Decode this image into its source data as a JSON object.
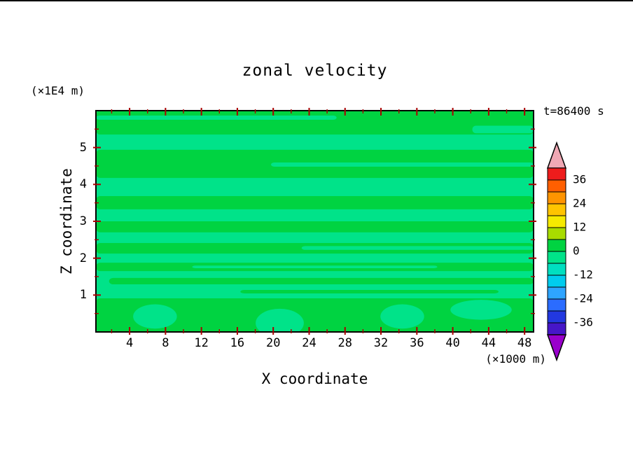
{
  "page": {
    "background": "#ffffff"
  },
  "chart_data": {
    "type": "heatmap",
    "subtype": "filled_contour",
    "title": "zonal velocity",
    "time_annotation": "t=86400 s",
    "xlabel": "X coordinate",
    "ylabel": "Z coordinate",
    "x_unit_note": "(×1000 m)",
    "y_unit_note": "(×1E4 m)",
    "xlim": [
      0.25,
      49
    ],
    "ylim": [
      0,
      6
    ],
    "x_ticks": [
      4,
      8,
      12,
      16,
      20,
      24,
      28,
      32,
      36,
      40,
      44,
      48
    ],
    "x_minor_step": 2,
    "y_ticks": [
      1,
      2,
      3,
      4,
      5
    ],
    "y_minor_step": 0.5,
    "contour_interval": 6,
    "value_range_displayed": [
      -42,
      42
    ],
    "frame_color": "#000000",
    "tick_color": "#aa0000",
    "field": {
      "background": "#00e389",
      "stripe_color": "#00d341",
      "stripes": [
        [
          0.0,
          0.108,
          0.0,
          1.0
        ],
        [
          0.177,
          0.127,
          0.0,
          1.0
        ],
        [
          0.386,
          0.06,
          0.0,
          1.0
        ],
        [
          0.5,
          0.05,
          0.0,
          1.0
        ],
        [
          0.598,
          0.048,
          0.0,
          1.0
        ],
        [
          0.687,
          0.038,
          0.0,
          1.0
        ],
        [
          0.756,
          0.029,
          0.03,
          1.0
        ],
        [
          0.81,
          0.016,
          0.33,
          0.92
        ],
        [
          0.848,
          0.152,
          0.0,
          1.0
        ]
      ],
      "gaps": [
        [
          0.022,
          0.019,
          0.0,
          0.55
        ],
        [
          0.068,
          0.034,
          0.86,
          1.0
        ],
        [
          0.234,
          0.019,
          0.4,
          1.0
        ],
        [
          0.612,
          0.017,
          0.47,
          1.0
        ],
        [
          0.7,
          0.012,
          0.22,
          0.78
        ]
      ],
      "blobs": [
        [
          0.135,
          0.93,
          0.05,
          0.055
        ],
        [
          0.42,
          0.96,
          0.055,
          0.065
        ],
        [
          0.7,
          0.93,
          0.05,
          0.055
        ],
        [
          0.88,
          0.9,
          0.07,
          0.045
        ]
      ]
    },
    "colorbar": {
      "labels": [
        "36",
        "24",
        "12",
        "0",
        "-12",
        "-24",
        "-36"
      ],
      "bands": [
        "#ee1c1c",
        "#ff5f00",
        "#ff9400",
        "#ffc400",
        "#f6ea00",
        "#a8dc00",
        "#00d341",
        "#00e389",
        "#00dfc0",
        "#00ccee",
        "#2ea4ff",
        "#2b6cff",
        "#2238e0",
        "#4616c8"
      ],
      "over_arrow_color": "#f0a8b4",
      "under_arrow_color": "#9900cc",
      "outline_color": "#000000"
    }
  }
}
